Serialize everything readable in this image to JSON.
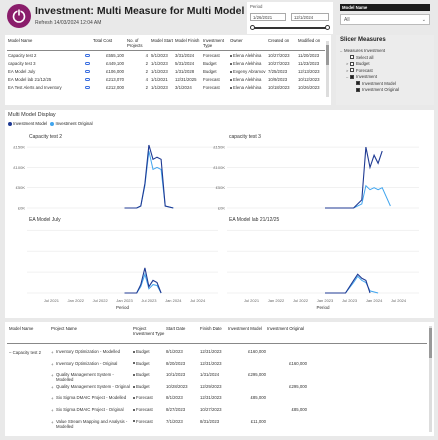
{
  "header": {
    "title": "Investment: Multi Measure for Multi Model Display",
    "refresh": "Refresh 14/03/2024 12:04 AM"
  },
  "period": {
    "label": "Period",
    "start": "1/26/2021",
    "end": "12/1/2024"
  },
  "model_name_filter": {
    "label": "Model Name",
    "value": "All"
  },
  "top_table": {
    "columns": [
      "Model Name",
      "",
      "Total Cost",
      "No. of Projects",
      "Model Start",
      "Model Finish",
      "Investment Type",
      "Owner",
      "Created on",
      "Modified on"
    ],
    "rows": [
      [
        "Capacity test 2",
        "",
        "£555,100",
        "4",
        "5/1/2023",
        "3/31/2024",
        "Forecast",
        "Elena Alekhina",
        "10/27/2023",
        "11/20/2023"
      ],
      [
        "capacity test 3",
        "",
        "£449,100",
        "2",
        "1/1/2023",
        "5/31/2024",
        "Budget",
        "Elena Alekhina",
        "10/27/2023",
        "11/23/2023"
      ],
      [
        "EA Model July",
        "",
        "£106,000",
        "2",
        "1/1/2023",
        "1/31/2028",
        "Budget",
        "Evgeny Abramov",
        "7/25/2023",
        "12/13/2023"
      ],
      [
        "EA Model lab 21/12/25",
        "",
        "£213,070",
        "4",
        "1/1/2021",
        "12/31/2025",
        "Forecast",
        "Elena Alekhina",
        "10/9/2023",
        "10/12/2023"
      ],
      [
        "EA Test Alerts and Inventory",
        "",
        "£212,000",
        "2",
        "1/1/2023",
        "3/1/2024",
        "Forecast",
        "Elena Alekhina",
        "10/18/2023",
        "10/26/2023"
      ],
      [
        "",
        "",
        "",
        "",
        "",
        "",
        "",
        "",
        "",
        ""
      ]
    ]
  },
  "slicer": {
    "title": "Slicer Measures",
    "items": [
      {
        "label": "Measures Investment",
        "level": 0,
        "checked": false,
        "expand": "-"
      },
      {
        "label": "Select all",
        "level": 1,
        "checked": false,
        "expand": ""
      },
      {
        "label": "Budget",
        "level": 1,
        "checked": false,
        "expand": "+"
      },
      {
        "label": "Forecast",
        "level": 1,
        "checked": false,
        "expand": "+"
      },
      {
        "label": "Investment",
        "level": 1,
        "checked": true,
        "expand": "-"
      },
      {
        "label": "Investment Model",
        "level": 2,
        "checked": true,
        "expand": ""
      },
      {
        "label": "Investment Original",
        "level": 2,
        "checked": true,
        "expand": ""
      }
    ]
  },
  "chart_panel": {
    "title": "Multi Model Display",
    "legend": [
      {
        "name": "Investment Model",
        "color": "#1f3a93"
      },
      {
        "name": "Investment Original",
        "color": "#41a5ee"
      }
    ],
    "xlabel": "Period"
  },
  "chart_data": [
    {
      "type": "line",
      "title": "Capacity test 2",
      "yticks": [
        "£150K",
        "£100K",
        "£50K",
        "£0K"
      ],
      "ylim": [
        0,
        160000
      ],
      "series": [
        {
          "name": "Investment Model",
          "color": "#1f3a93",
          "x": [
            "2023-01",
            "2023-04",
            "2023-05",
            "2023-06",
            "2023-07",
            "2023-08",
            "2023-09",
            "2023-10",
            "2023-11",
            "2024-01"
          ],
          "values": [
            0,
            0,
            5000,
            60000,
            155000,
            120000,
            125000,
            120000,
            5000,
            0
          ]
        },
        {
          "name": "Investment Original",
          "color": "#41a5ee",
          "x": [
            "2023-01",
            "2023-04",
            "2023-05",
            "2023-06",
            "2023-07",
            "2023-08",
            "2023-09",
            "2023-10",
            "2023-11",
            "2024-01"
          ],
          "values": [
            0,
            0,
            5000,
            55000,
            140000,
            95000,
            100000,
            95000,
            5000,
            0
          ]
        }
      ]
    },
    {
      "type": "line",
      "title": "capacity test 3",
      "yticks": [
        "£150K",
        "£100K",
        "£50K",
        "£0K"
      ],
      "ylim": [
        0,
        160000
      ],
      "series": [
        {
          "name": "Investment Model",
          "color": "#1f3a93",
          "x": [
            "2023-01",
            "2023-08",
            "2023-10",
            "2023-11",
            "2023-12",
            "2024-01",
            "2024-02",
            "2024-03"
          ],
          "values": [
            0,
            0,
            20000,
            150000,
            100000,
            130000,
            110000,
            140000
          ]
        },
        {
          "name": "Investment Original",
          "color": "#41a5ee",
          "x": [
            "2023-01",
            "2023-08",
            "2023-10",
            "2023-11",
            "2023-12",
            "2024-01",
            "2024-02",
            "2024-03",
            "2024-05"
          ],
          "values": [
            0,
            0,
            10000,
            55000,
            45000,
            50000,
            45000,
            50000,
            5000
          ]
        }
      ]
    },
    {
      "type": "line",
      "title": "EA Model July",
      "yticks": [],
      "ylim": [
        0,
        160000
      ],
      "series": [
        {
          "name": "Investment Model",
          "color": "#1f3a93",
          "x": [
            "2023-01",
            "2023-04",
            "2023-05",
            "2023-06",
            "2023-07",
            "2023-08",
            "2023-09",
            "2023-10"
          ],
          "values": [
            0,
            0,
            20000,
            60000,
            15000,
            30000,
            25000,
            0
          ]
        },
        {
          "name": "Investment Original",
          "color": "#41a5ee",
          "x": [
            "2023-01",
            "2023-04",
            "2023-05",
            "2023-06",
            "2023-07",
            "2023-08",
            "2023-09",
            "2023-10"
          ],
          "values": [
            0,
            0,
            15000,
            45000,
            10000,
            20000,
            18000,
            0
          ]
        }
      ]
    },
    {
      "type": "line",
      "title": "EA Model lab 21/12/25",
      "yticks": [],
      "ylim": [
        0,
        160000
      ],
      "series": [
        {
          "name": "Investment Model",
          "color": "#1f3a93",
          "x": [
            "2023-01",
            "2023-06",
            "2023-08",
            "2023-09",
            "2023-10",
            "2023-11",
            "2023-12"
          ],
          "values": [
            0,
            0,
            30000,
            45000,
            35000,
            30000,
            0
          ]
        },
        {
          "name": "Investment Original",
          "color": "#41a5ee",
          "x": [
            "2023-01",
            "2023-06",
            "2023-08",
            "2023-09",
            "2023-10",
            "2023-11",
            "2023-12",
            "2024-02"
          ],
          "values": [
            0,
            0,
            25000,
            40000,
            30000,
            25000,
            5000,
            0
          ]
        }
      ]
    }
  ],
  "x_axis_ticks": [
    "Jul 2021",
    "Jan 2022",
    "Jul 2022",
    "Jan 2023",
    "Jul 2023",
    "Jan 2024",
    "Jul 2024"
  ],
  "bottom_table": {
    "columns": [
      "Model Name",
      "Project Name",
      "Project Investment Type",
      "Start Date",
      "Finish Date",
      "Investment Model",
      "Investment Original"
    ],
    "model": "Capacity test 2",
    "rows": [
      [
        "Inventory Optimization - Modelled",
        "Budget",
        "8/1/2023",
        "12/31/2023",
        "£160,000",
        ""
      ],
      [
        "Inventory Optimization - Original",
        "Budget",
        "8/20/2023",
        "12/31/2023",
        "",
        "£160,000"
      ],
      [
        "Quality Management System - Modelled",
        "Budget",
        "10/1/2023",
        "1/31/2024",
        "£295,000",
        ""
      ],
      [
        "Quality Management System - Original",
        "Budget",
        "10/28/2023",
        "12/29/2023",
        "",
        "£295,000"
      ],
      [
        "Six Sigma DMAIC Project - Modelled",
        "Forecast",
        "8/1/2023",
        "12/31/2023",
        "£85,000",
        ""
      ],
      [
        "Six Sigma DMAIC Project - Original",
        "Forecast",
        "8/27/2023",
        "10/27/2023",
        "",
        "£85,000"
      ],
      [
        "Value Stream Mapping and Analysis - Modelled",
        "Forecast",
        "7/1/2023",
        "8/31/2023",
        "£11,000",
        ""
      ]
    ]
  }
}
